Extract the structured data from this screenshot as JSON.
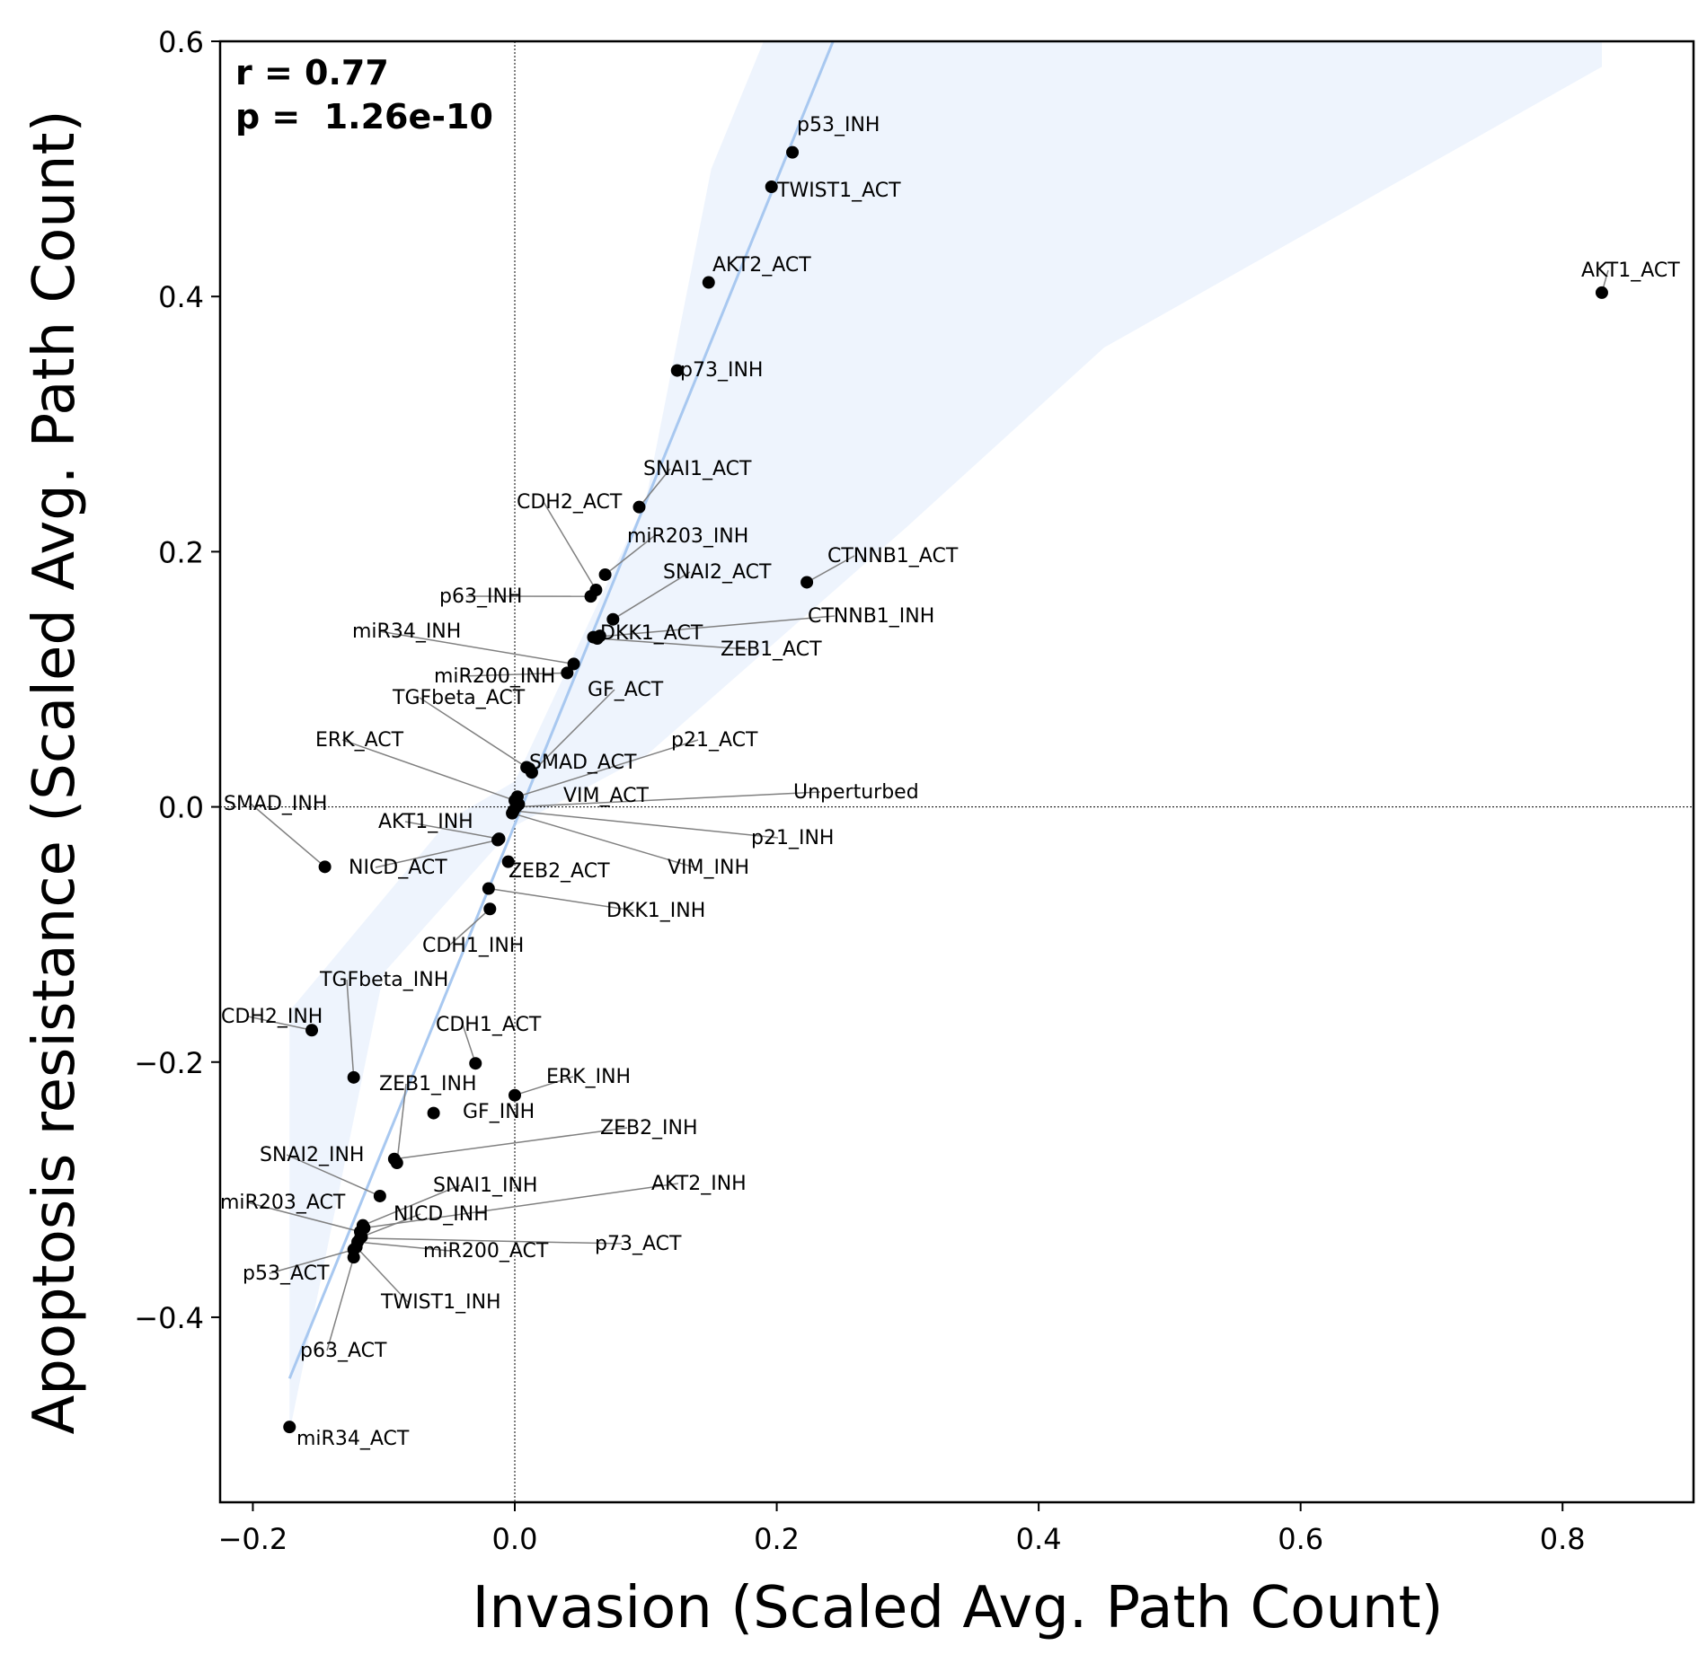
{
  "chart_data": {
    "type": "scatter",
    "xlabel": "Invasion (Scaled Avg. Path Count)",
    "ylabel": "Apoptosis resistance (Scaled Avg. Path Count)",
    "xlim": [
      -0.225,
      0.9
    ],
    "ylim": [
      -0.545,
      0.6
    ],
    "xticks": [
      -0.2,
      0.0,
      0.2,
      0.4,
      0.6,
      0.8
    ],
    "xtick_labels": [
      "−0.2",
      "0.0",
      "0.2",
      "0.4",
      "0.6",
      "0.8"
    ],
    "yticks": [
      -0.4,
      -0.2,
      0.0,
      0.2,
      0.4,
      0.6
    ],
    "ytick_labels": [
      "−0.4",
      "−0.2",
      "0.0",
      "0.2",
      "0.4",
      "0.6"
    ],
    "annotations": {
      "r_text": "r = 0.77",
      "p_text": "p =  1.26e-10"
    },
    "grid": false,
    "reference_lines": [
      {
        "axis": "x",
        "value": 0
      },
      {
        "axis": "y",
        "value": 0
      }
    ],
    "regression": {
      "x": [
        -0.172,
        0.243
      ],
      "y": [
        -0.448,
        0.6
      ],
      "ci_upper": [
        [
          -0.172,
          -0.16
        ],
        [
          -0.05,
          -0.01
        ],
        [
          0.0,
          0.02
        ],
        [
          0.1,
          0.24
        ],
        [
          0.15,
          0.5
        ],
        [
          0.19,
          0.6
        ],
        [
          0.83,
          0.6
        ]
      ],
      "ci_lower": [
        [
          0.83,
          0.58
        ],
        [
          0.45,
          0.36
        ],
        [
          0.3,
          0.22
        ],
        [
          0.1,
          0.04
        ],
        [
          0.0,
          -0.015
        ],
        [
          -0.1,
          -0.13
        ],
        [
          -0.172,
          -0.49
        ]
      ],
      "line_color": "#a8c8f0",
      "band_color": "#eef4fd"
    },
    "point_color": "#000000",
    "points": [
      {
        "label": "p53_INH",
        "x": 0.212,
        "y": 0.513
      },
      {
        "label": "TWIST1_ACT",
        "x": 0.196,
        "y": 0.486
      },
      {
        "label": "AKT2_ACT",
        "x": 0.148,
        "y": 0.411
      },
      {
        "label": "AKT1_ACT",
        "x": 0.83,
        "y": 0.403
      },
      {
        "label": "p73_INH",
        "x": 0.124,
        "y": 0.342
      },
      {
        "label": "SNAI1_ACT",
        "x": 0.095,
        "y": 0.235
      },
      {
        "label": "CDH2_ACT",
        "x": 0.062,
        "y": 0.17
      },
      {
        "label": "miR203_INH",
        "x": 0.069,
        "y": 0.182
      },
      {
        "label": "CTNNB1_ACT",
        "x": 0.223,
        "y": 0.176
      },
      {
        "label": "SNAI2_ACT",
        "x": 0.075,
        "y": 0.147
      },
      {
        "label": "p63_INH",
        "x": 0.058,
        "y": 0.165
      },
      {
        "label": "CTNNB1_INH",
        "x": 0.06,
        "y": 0.133
      },
      {
        "label": "DKK1_ACT",
        "x": 0.065,
        "y": 0.134
      },
      {
        "label": "ZEB1_ACT",
        "x": 0.063,
        "y": 0.132
      },
      {
        "label": "miR34_INH",
        "x": 0.045,
        "y": 0.112
      },
      {
        "label": "miR200_INH",
        "x": 0.04,
        "y": 0.105
      },
      {
        "label": "GF_ACT",
        "x": 0.013,
        "y": 0.027
      },
      {
        "label": "TGFbeta_ACT",
        "x": 0.009,
        "y": 0.031
      },
      {
        "label": "SMAD_ACT",
        "x": 0.011,
        "y": 0.03
      },
      {
        "label": "p21_ACT",
        "x": 0.002,
        "y": 0.008
      },
      {
        "label": "ERK_ACT",
        "x": 0.0,
        "y": 0.005
      },
      {
        "label": "VIM_ACT",
        "x": 0.003,
        "y": 0.002
      },
      {
        "label": "Unperturbed",
        "x": 0.001,
        "y": 0.0
      },
      {
        "label": "p21_INH",
        "x": -0.001,
        "y": -0.003
      },
      {
        "label": "VIM_INH",
        "x": -0.002,
        "y": -0.005
      },
      {
        "label": "SMAD_INH",
        "x": -0.145,
        "y": -0.047
      },
      {
        "label": "AKT1_INH",
        "x": -0.012,
        "y": -0.025
      },
      {
        "label": "NICD_ACT",
        "x": -0.013,
        "y": -0.026
      },
      {
        "label": "ZEB2_ACT",
        "x": -0.005,
        "y": -0.043
      },
      {
        "label": "DKK1_INH",
        "x": -0.02,
        "y": -0.064
      },
      {
        "label": "CDH1_INH",
        "x": -0.019,
        "y": -0.08
      },
      {
        "label": "CDH2_INH",
        "x": -0.155,
        "y": -0.175
      },
      {
        "label": "TGFbeta_INH",
        "x": -0.123,
        "y": -0.212
      },
      {
        "label": "CDH1_ACT",
        "x": -0.03,
        "y": -0.201
      },
      {
        "label": "ERK_INH",
        "x": 0.0,
        "y": -0.226
      },
      {
        "label": "ZEB1_INH",
        "x": -0.09,
        "y": -0.279
      },
      {
        "label": "GF_INH",
        "x": -0.062,
        "y": -0.24
      },
      {
        "label": "ZEB2_INH",
        "x": -0.092,
        "y": -0.276
      },
      {
        "label": "SNAI2_INH",
        "x": -0.103,
        "y": -0.305
      },
      {
        "label": "SNAI1_INH",
        "x": -0.116,
        "y": -0.328
      },
      {
        "label": "AKT2_INH",
        "x": -0.115,
        "y": -0.33
      },
      {
        "label": "miR203_ACT",
        "x": -0.118,
        "y": -0.333
      },
      {
        "label": "NICD_INH",
        "x": -0.117,
        "y": -0.337
      },
      {
        "label": "p73_ACT",
        "x": -0.118,
        "y": -0.338
      },
      {
        "label": "miR200_ACT",
        "x": -0.12,
        "y": -0.341
      },
      {
        "label": "TWIST1_INH",
        "x": -0.121,
        "y": -0.345
      },
      {
        "label": "p53_ACT",
        "x": -0.123,
        "y": -0.347
      },
      {
        "label": "p63_ACT",
        "x": -0.123,
        "y": -0.353
      },
      {
        "label": "miR34_ACT",
        "x": -0.172,
        "y": -0.486
      }
    ]
  }
}
